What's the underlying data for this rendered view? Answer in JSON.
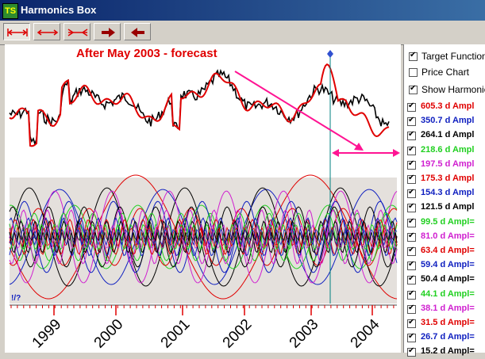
{
  "window": {
    "title": "Harmonics Box",
    "icon_text": "TS"
  },
  "toolbar": {
    "buttons": [
      "expand-both-button",
      "expand-horizontal-button",
      "compress-horizontal-button",
      "scroll-right-button",
      "scroll-left-button"
    ]
  },
  "chart": {
    "annotation": "After May 2003 - forecast",
    "corner_mark": "!/?",
    "year_labels": [
      "1999",
      "2000",
      "2001",
      "2002",
      "2003",
      "2004"
    ],
    "colors": {
      "target": "#000000",
      "sum": "#e00000",
      "arrow": "#ff1493",
      "divider": "#008080",
      "marker": "#3050d0"
    }
  },
  "options": [
    {
      "label": "Target Function",
      "checked": true
    },
    {
      "label": "Price Chart",
      "checked": false
    },
    {
      "label": "Show Harmonics",
      "checked": true
    }
  ],
  "harmonics": [
    {
      "text": "605.3 d  Ampl",
      "color": "#e00000"
    },
    {
      "text": "350.7 d  Ampl",
      "color": "#1020c0"
    },
    {
      "text": "264.1 d  Ampl",
      "color": "#000000"
    },
    {
      "text": "218.6 d  Ampl",
      "color": "#20d020"
    },
    {
      "text": "197.5 d  Ampl",
      "color": "#d020d0"
    },
    {
      "text": "175.3 d  Ampl",
      "color": "#e00000"
    },
    {
      "text": "154.3 d  Ampl",
      "color": "#1020c0"
    },
    {
      "text": "121.5 d  Ampl",
      "color": "#000000"
    },
    {
      "text": "99.5 d  Ampl=",
      "color": "#20d020"
    },
    {
      "text": "81.0 d  Ampl=",
      "color": "#d020d0"
    },
    {
      "text": "63.4 d  Ampl=",
      "color": "#e00000"
    },
    {
      "text": "59.4 d  Ampl=",
      "color": "#1020c0"
    },
    {
      "text": "50.4 d  Ampl=",
      "color": "#000000"
    },
    {
      "text": "44.1 d  Ampl=",
      "color": "#20d020"
    },
    {
      "text": "38.1 d  Ampl=",
      "color": "#d020d0"
    },
    {
      "text": "31.5 d  Ampl=",
      "color": "#e00000"
    },
    {
      "text": "26.7 d  Ampl=",
      "color": "#1020c0"
    },
    {
      "text": "15.2 d  Ampl=",
      "color": "#000000"
    }
  ]
}
